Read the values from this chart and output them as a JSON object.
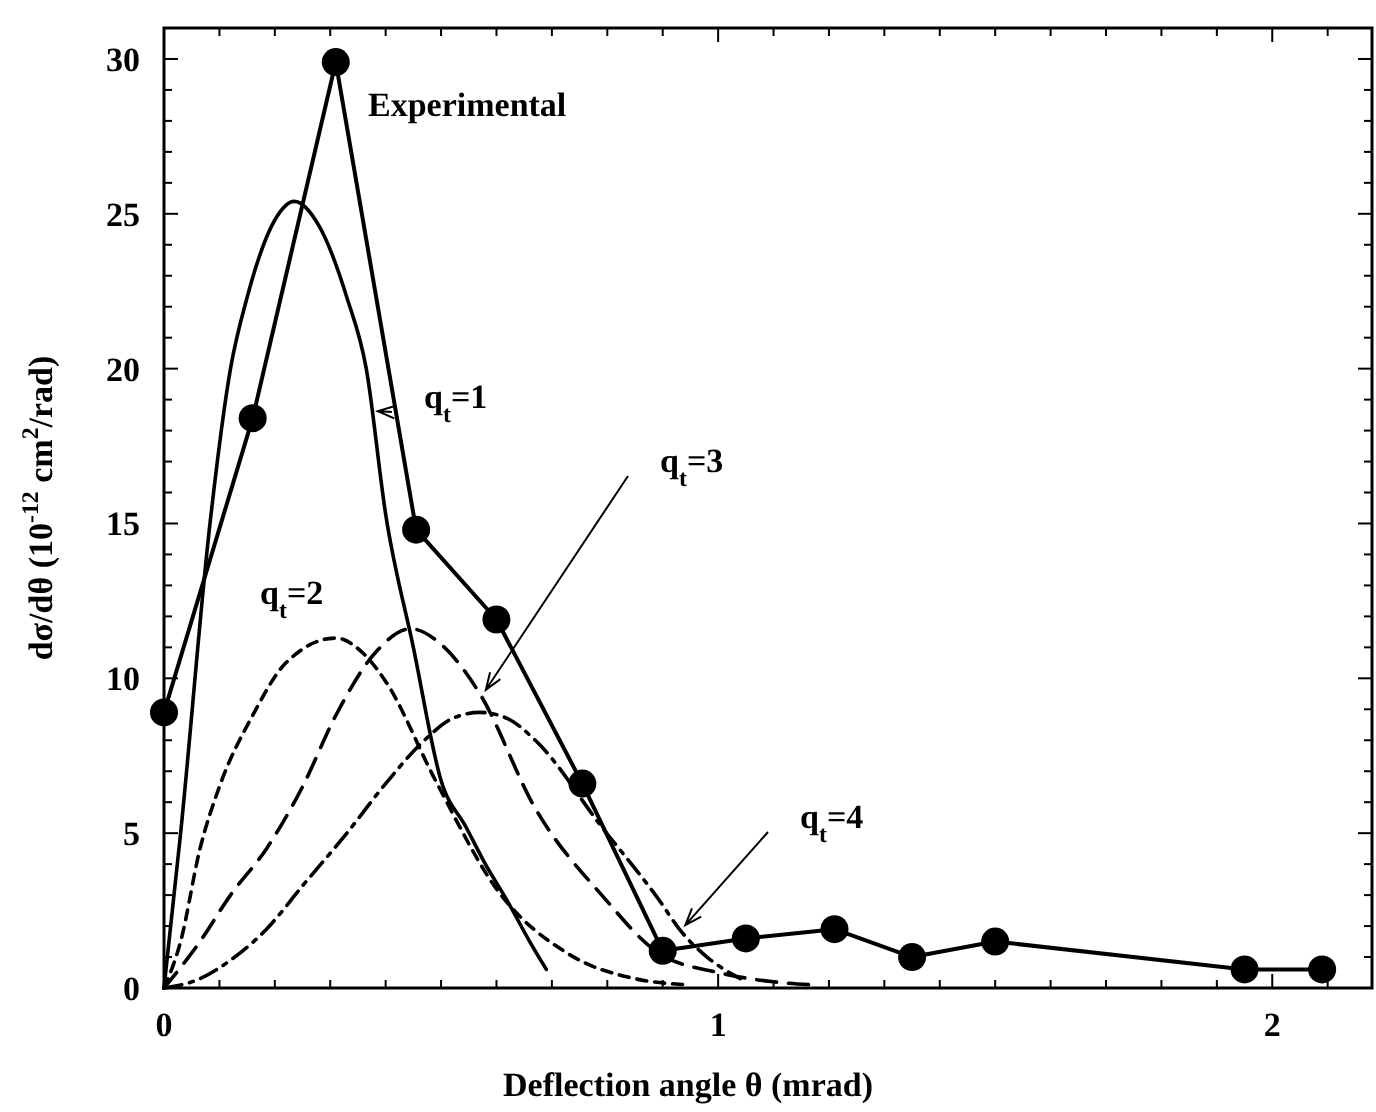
{
  "chart_data": {
    "type": "line",
    "xlabel": "Deflection angle θ (mrad)",
    "ylabel": "dσ/dθ (10$^{-12}$ cm$^{2}$/rad)",
    "xlim": [
      0,
      2.18
    ],
    "ylim": [
      0,
      31
    ],
    "xticks": [
      0,
      {
        "value": 0.1,
        "label": null
      },
      {
        "value": 0.2,
        "label": null
      },
      {
        "value": 0.3,
        "label": null
      },
      {
        "value": 0.4,
        "label": null
      },
      {
        "value": 0.5,
        "label": null
      },
      {
        "value": 0.6,
        "label": null
      },
      {
        "value": 0.7,
        "label": null
      },
      {
        "value": 0.8,
        "label": null
      },
      {
        "value": 0.9,
        "label": null
      },
      1,
      {
        "value": 1.1,
        "label": null
      },
      {
        "value": 1.2,
        "label": null
      },
      {
        "value": 1.3,
        "label": null
      },
      {
        "value": 1.4,
        "label": null
      },
      {
        "value": 1.5,
        "label": null
      },
      {
        "value": 1.6,
        "label": null
      },
      {
        "value": 1.7,
        "label": null
      },
      {
        "value": 1.8,
        "label": null
      },
      {
        "value": 1.9,
        "label": null
      },
      2,
      {
        "value": 2.1,
        "label": null
      }
    ],
    "yticks": [
      0,
      {
        "value": 1,
        "label": null
      },
      {
        "value": 2,
        "label": null
      },
      {
        "value": 3,
        "label": null
      },
      {
        "value": 4,
        "label": null
      },
      5,
      {
        "value": 6,
        "label": null
      },
      {
        "value": 7,
        "label": null
      },
      {
        "value": 8,
        "label": null
      },
      {
        "value": 9,
        "label": null
      },
      10,
      {
        "value": 11,
        "label": null
      },
      {
        "value": 12,
        "label": null
      },
      {
        "value": 13,
        "label": null
      },
      {
        "value": 14,
        "label": null
      },
      15,
      {
        "value": 16,
        "label": null
      },
      {
        "value": 17,
        "label": null
      },
      {
        "value": 18,
        "label": null
      },
      {
        "value": 19,
        "label": null
      },
      20,
      {
        "value": 21,
        "label": null
      },
      {
        "value": 22,
        "label": null
      },
      {
        "value": 23,
        "label": null
      },
      {
        "value": 24,
        "label": null
      },
      25,
      {
        "value": 26,
        "label": null
      },
      {
        "value": 27,
        "label": null
      },
      {
        "value": 28,
        "label": null
      },
      {
        "value": 29,
        "label": null
      },
      30
    ],
    "grid": false,
    "series": [
      {
        "name": "Experimental",
        "color": "#000000",
        "marker": "circle",
        "line_style": "solid",
        "x": [
          0,
          0.16,
          0.31,
          0.455,
          0.6,
          0.755,
          0.9,
          1.05,
          1.21,
          1.35,
          1.5,
          1.95,
          2.09
        ],
        "values": [
          8.9,
          18.4,
          29.9,
          14.8,
          11.9,
          6.6,
          1.2,
          1.6,
          1.9,
          1.0,
          1.5,
          0.6,
          0.6
        ]
      },
      {
        "name": "q$_{t}$=1",
        "color": "#000000",
        "marker": "none",
        "line_style": "solid",
        "x": [
          0,
          0.03,
          0.083,
          0.12,
          0.15,
          0.2,
          0.235,
          0.28,
          0.33,
          0.365,
          0.4,
          0.45,
          0.5,
          0.545,
          0.58,
          0.62,
          0.66,
          0.69
        ],
        "values": [
          0,
          5,
          15,
          20,
          22.3,
          24.8,
          25.4,
          24.6,
          22.3,
          20,
          15.3,
          11,
          6.7,
          5.2,
          4,
          2.8,
          1.5,
          0.6
        ]
      },
      {
        "name": "q$_{t}$=2",
        "color": "#000000",
        "marker": "none",
        "line_style": "dotted",
        "x": [
          0,
          0.03,
          0.065,
          0.1,
          0.16,
          0.22,
          0.31,
          0.36,
          0.4,
          0.49,
          0.6,
          0.73,
          0.85,
          0.95
        ],
        "values": [
          0,
          1.5,
          4.5,
          6.5,
          8.8,
          10.5,
          11.3,
          10.8,
          9.9,
          6.7,
          3.2,
          1.1,
          0.3,
          0.1
        ]
      },
      {
        "name": "q$_{t}$=3",
        "color": "#000000",
        "marker": "none",
        "line_style": "dashed",
        "x": [
          0,
          0.065,
          0.12,
          0.185,
          0.25,
          0.31,
          0.38,
          0.445,
          0.5,
          0.57,
          0.67,
          0.79,
          0.895,
          1.0,
          1.1,
          1.17
        ],
        "values": [
          0,
          1.5,
          3,
          4.5,
          6.5,
          8.8,
          10.8,
          11.6,
          11.1,
          9.5,
          5.8,
          3.0,
          1.1,
          0.5,
          0.2,
          0.1
        ]
      },
      {
        "name": "q$_{t}$=4",
        "color": "#000000",
        "marker": "none",
        "line_style": "dashdot",
        "x": [
          0,
          0.065,
          0.12,
          0.185,
          0.25,
          0.33,
          0.4,
          0.47,
          0.52,
          0.57,
          0.62,
          0.67,
          0.79,
          0.895,
          0.93,
          0.98,
          1.04
        ],
        "values": [
          0,
          0.3,
          0.9,
          1.9,
          3.3,
          5.0,
          6.6,
          8.0,
          8.7,
          8.9,
          8.7,
          8.0,
          5.2,
          2.8,
          1.9,
          1.0,
          0.3
        ]
      }
    ]
  }
}
